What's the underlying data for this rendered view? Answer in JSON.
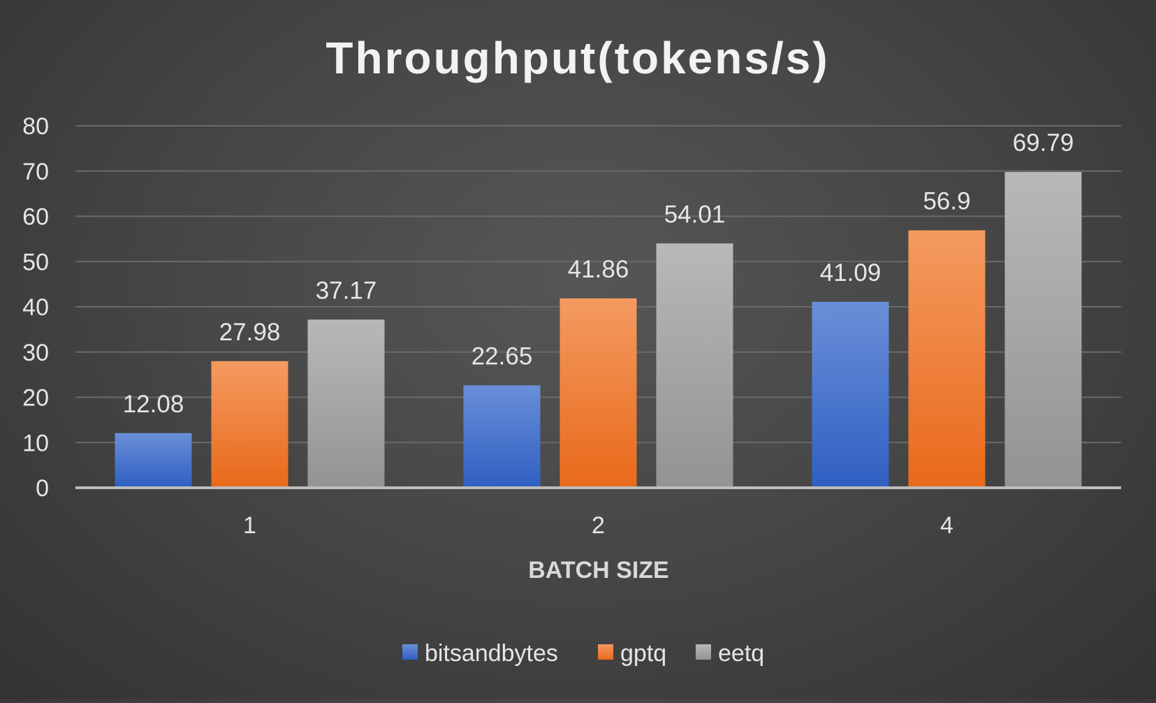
{
  "chart_data": {
    "type": "bar",
    "title": "Throughput(tokens/s)",
    "xlabel": "BATCH SIZE",
    "ylabel": "",
    "categories": [
      "1",
      "2",
      "4"
    ],
    "series": [
      {
        "name": "bitsandbytes",
        "values": [
          12.08,
          22.65,
          41.09
        ],
        "value_labels": [
          "12.08",
          "22.65",
          "41.09"
        ]
      },
      {
        "name": "gptq",
        "values": [
          27.98,
          41.86,
          56.9
        ],
        "value_labels": [
          "27.98",
          "41.86",
          "56.9"
        ]
      },
      {
        "name": "eetq",
        "values": [
          37.17,
          54.01,
          69.79
        ],
        "value_labels": [
          "37.17",
          "54.01",
          "69.79"
        ]
      }
    ],
    "ylim": [
      0,
      80
    ],
    "yticks": [
      "0",
      "10",
      "20",
      "30",
      "40",
      "50",
      "60",
      "70",
      "80"
    ],
    "grid": true,
    "legend": "bottom",
    "colors": {
      "bitsandbytes": [
        "#6a8fd8",
        "#2f5fc2"
      ],
      "gptq": [
        "#f49a60",
        "#e9691a"
      ],
      "eetq": [
        "#b8b8b8",
        "#939393"
      ],
      "background": "#4a4a4a",
      "text": "#e6e6e6",
      "grid": "#6a6a6a",
      "axis": "#bdbdbd"
    }
  }
}
